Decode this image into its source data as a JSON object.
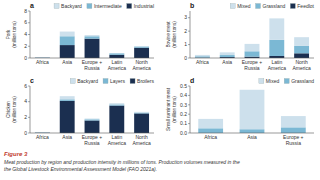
{
  "chart_data": [
    {
      "type": "bar",
      "title": "a",
      "y_label": "Pork\n(million tons)",
      "categories": [
        "Africa",
        "Asia",
        "Europe +\nRussia",
        "Latin\nAmerica",
        "North\nAmerica"
      ],
      "series": [
        {
          "name": "Industrial",
          "color": "#1b2f50",
          "values": [
            0.05,
            2.2,
            3.3,
            0.55,
            1.75
          ]
        },
        {
          "name": "Intermediate",
          "color": "#7bb8d4",
          "values": [
            0.05,
            1.5,
            0.4,
            0.25,
            0.2
          ]
        },
        {
          "name": "Backyard",
          "color": "#cde0ec",
          "values": [
            0.05,
            0.8,
            0.2,
            0.05,
            0.05
          ]
        }
      ],
      "ylim": [
        0,
        8
      ],
      "yticks": [
        0,
        2,
        4,
        6,
        8
      ],
      "stacked": true,
      "legend": "upper right",
      "grid": false
    },
    {
      "type": "bar",
      "title": "b",
      "y_label": "Bovine meat\n(million tons)",
      "categories": [
        "Africa",
        "Asia",
        "Europe +\nRussia",
        "Latin\nAmerica",
        "North\nAmerica"
      ],
      "series": [
        {
          "name": "Feedlot",
          "color": "#1b2f50",
          "values": [
            0.03,
            0.07,
            0.1,
            0.15,
            0.35
          ]
        },
        {
          "name": "Grassland",
          "color": "#7bb8d4",
          "values": [
            0.1,
            0.15,
            0.4,
            1.2,
            0.55
          ]
        },
        {
          "name": "Mixed",
          "color": "#cde0ec",
          "values": [
            0.1,
            0.2,
            0.55,
            1.6,
            0.65
          ]
        }
      ],
      "ylim": [
        0,
        3.5
      ],
      "yticks": [
        0,
        1,
        2,
        3
      ],
      "stacked": true,
      "legend": "upper right",
      "grid": false
    },
    {
      "type": "bar",
      "title": "c",
      "y_label": "Chicken\n(million tons)",
      "categories": [
        "Africa",
        "Asia",
        "Europe +\nRussia",
        "Latin\nAmerica",
        "North\nAmerica"
      ],
      "series": [
        {
          "name": "Broilers",
          "color": "#1b2f50",
          "values": [
            0.05,
            4.1,
            1.6,
            3.5,
            2.5
          ]
        },
        {
          "name": "Layers",
          "color": "#7bb8d4",
          "values": [
            0.03,
            0.2,
            0.15,
            0.15,
            0.1
          ]
        },
        {
          "name": "Backyard",
          "color": "#cde0ec",
          "values": [
            0.05,
            0.4,
            0.1,
            0.15,
            0.1
          ]
        }
      ],
      "ylim": [
        0,
        6
      ],
      "yticks": [
        0,
        2,
        4,
        6
      ],
      "stacked": true,
      "legend": "upper right",
      "grid": false
    },
    {
      "type": "bar",
      "title": "d",
      "y_label": "Small ruminant meat\n(million tons)",
      "categories": [
        "Africa",
        "Asia",
        "Europe +\nRussia"
      ],
      "series": [
        {
          "name": "Grassland",
          "color": "#7bb8d4",
          "values": [
            0.05,
            0.04,
            0.06
          ]
        },
        {
          "name": "Mixed",
          "color": "#cde0ec",
          "values": [
            0.1,
            0.42,
            0.12
          ]
        }
      ],
      "ylim": [
        0,
        0.5
      ],
      "yticks": [
        {
          "value": 0.0,
          "label": "0.0"
        },
        0.1,
        0.2,
        0.3,
        0.4,
        0.5
      ],
      "stacked": true,
      "legend": "upper right",
      "grid": false
    }
  ],
  "title": "Figure 3",
  "subtitle": "Meat production by region and production intensity in millions of tons. Production volumes measured in the\nthe Global Livestock Environmental Assessment Model (FAO 2021a)."
}
